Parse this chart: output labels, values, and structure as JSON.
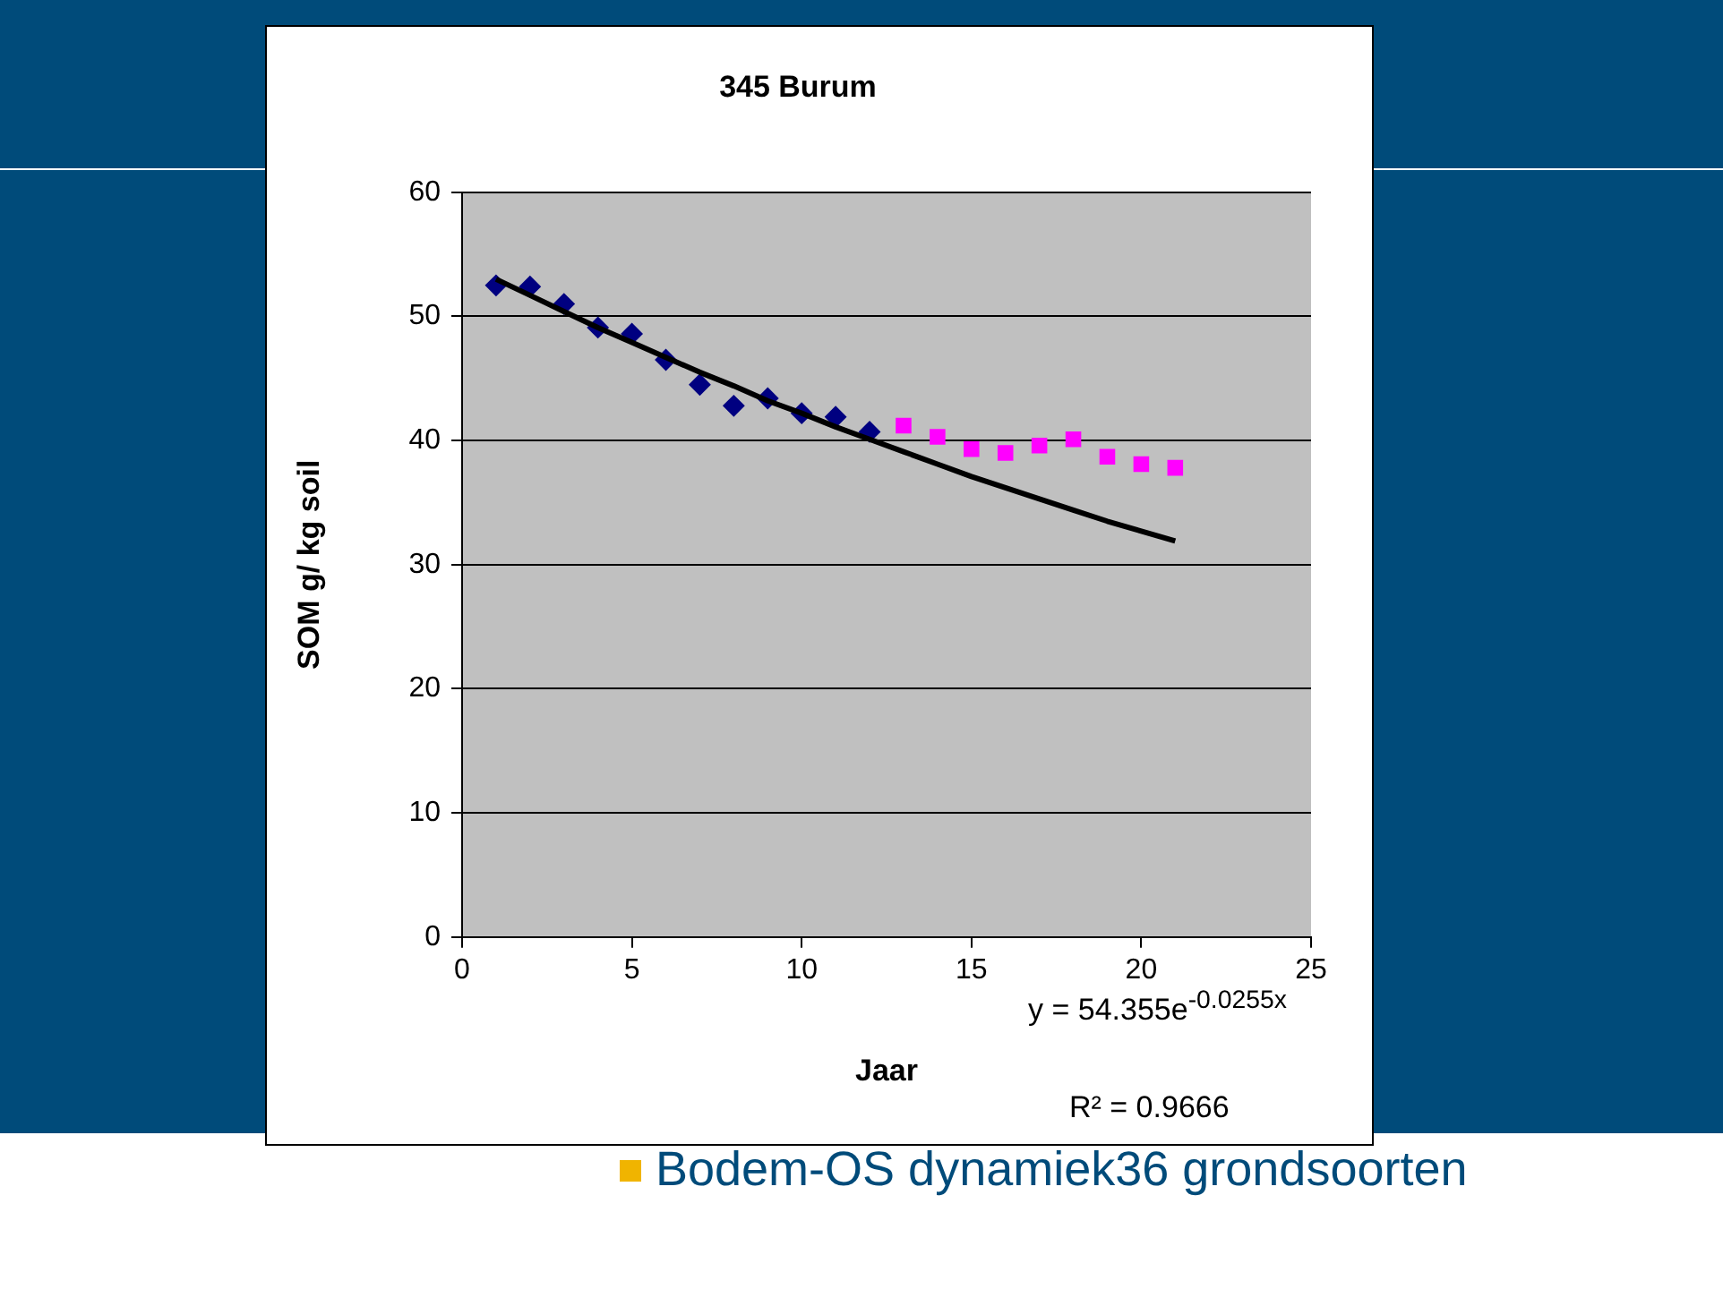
{
  "chart_data": {
    "type": "scatter",
    "title": "345 Burum",
    "xlabel": "Jaar",
    "ylabel": "SOM g/ kg soil",
    "xlim": [
      0,
      25
    ],
    "xticks": [
      0,
      5,
      10,
      15,
      20,
      25
    ],
    "ylim": [
      0,
      60
    ],
    "yticks": [
      0,
      10,
      20,
      30,
      40,
      50,
      60
    ],
    "grid": "y",
    "legend": false,
    "series": [
      {
        "type": "scatter",
        "marker": "diamond",
        "color": "#000080",
        "x": [
          1,
          2,
          3,
          4,
          5,
          6,
          7,
          8,
          9,
          10,
          11,
          12
        ],
        "values": [
          52.5,
          52.4,
          51.0,
          49.1,
          48.6,
          46.5,
          44.5,
          42.8,
          43.4,
          42.2,
          41.9,
          40.7
        ]
      },
      {
        "type": "scatter",
        "marker": "square",
        "color": "#ff00ff",
        "x": [
          13,
          14,
          15,
          16,
          17,
          18,
          19,
          20,
          21
        ],
        "values": [
          41.2,
          40.3,
          39.3,
          39.0,
          39.6,
          40.1,
          38.7,
          38.1,
          37.8
        ]
      },
      {
        "type": "line",
        "marker": "none",
        "color": "#000000",
        "x": [
          1,
          2,
          3,
          4,
          5,
          6,
          7,
          8,
          9,
          10,
          11,
          12,
          13,
          14,
          15,
          16,
          17,
          18,
          19,
          20,
          21
        ],
        "values": [
          53.0,
          51.7,
          50.4,
          49.1,
          47.9,
          46.7,
          45.5,
          44.4,
          43.2,
          42.2,
          41.1,
          40.1,
          39.1,
          38.1,
          37.1,
          36.2,
          35.3,
          34.4,
          33.5,
          32.7,
          31.9
        ]
      }
    ],
    "annotations": [
      "y = 54.355e$^{-0.0255x}$",
      "R² = 0.9666",
      "Bodem-OS dynamiek36 grondsoorten"
    ]
  }
}
